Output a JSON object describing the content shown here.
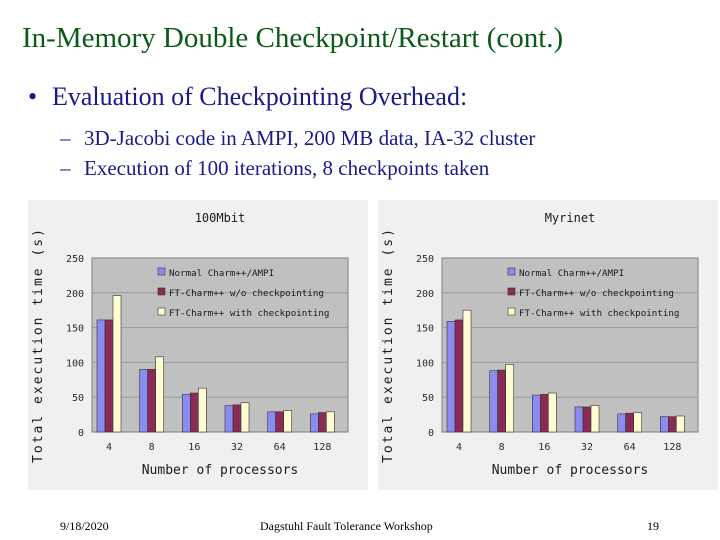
{
  "slide": {
    "title": "In-Memory Double Checkpoint/Restart (cont.)",
    "bullet_symbol": "•",
    "bullet": "Evaluation of Checkpointing Overhead:",
    "sub_symbol": "–",
    "sub_bullets": [
      "3D-Jacobi code in AMPI, 200 MB data, IA-32 cluster",
      "Execution of 100 iterations, 8 checkpoints taken"
    ],
    "title_color": "#0b5a17",
    "text_color": "#1a1a8c"
  },
  "footer": {
    "date": "9/18/2020",
    "event": "Dagstuhl Fault Tolerance Workshop",
    "page": "19"
  },
  "chart_data": [
    {
      "type": "bar",
      "title": "100Mbit",
      "xlabel": "Number of processors",
      "ylabel": "Total execution time (s)",
      "ylim": [
        0,
        250
      ],
      "yticks": [
        0,
        50,
        100,
        150,
        200,
        250
      ],
      "categories": [
        "4",
        "8",
        "16",
        "32",
        "64",
        "128"
      ],
      "grid": true,
      "legend_position": "top-right",
      "series": [
        {
          "name": "Normal Charm++/AMPI",
          "color": "#8c8cf0",
          "values": [
            161,
            90,
            54,
            38,
            29,
            26
          ]
        },
        {
          "name": "FT-Charm++ w/o checkpointing",
          "color": "#8a2b55",
          "values": [
            161,
            90,
            56,
            39,
            29,
            28
          ]
        },
        {
          "name": "FT-Charm++ with checkpointing",
          "color": "#fffcd2",
          "values": [
            196,
            108,
            63,
            42,
            31,
            29
          ]
        }
      ]
    },
    {
      "type": "bar",
      "title": "Myrinet",
      "xlabel": "Number of processors",
      "ylabel": "Total execution time (s)",
      "ylim": [
        0,
        250
      ],
      "yticks": [
        0,
        50,
        100,
        150,
        200,
        250
      ],
      "categories": [
        "4",
        "8",
        "16",
        "32",
        "64",
        "128"
      ],
      "grid": true,
      "legend_position": "top-right",
      "series": [
        {
          "name": "Normal Charm++/AMPI",
          "color": "#8c8cf0",
          "values": [
            159,
            88,
            53,
            36,
            26,
            22
          ]
        },
        {
          "name": "FT-Charm++ w/o checkpointing",
          "color": "#8a2b55",
          "values": [
            161,
            89,
            54,
            36,
            27,
            22
          ]
        },
        {
          "name": "FT-Charm++ with checkpointing",
          "color": "#fffcd2",
          "values": [
            175,
            97,
            56,
            38,
            28,
            23
          ]
        }
      ]
    }
  ]
}
